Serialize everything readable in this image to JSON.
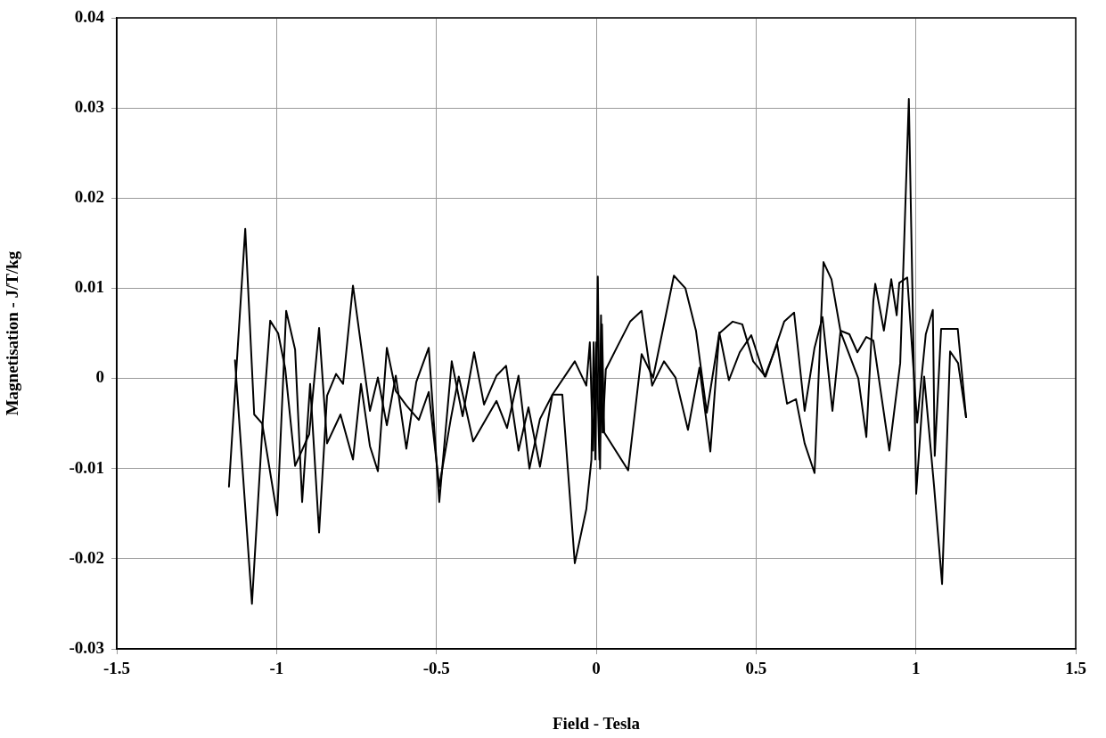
{
  "chart_data": {
    "type": "line",
    "xlabel": "Field - Tesla",
    "ylabel": "Magnetisation - J/T/kg",
    "xlim": [
      -1.5,
      1.5
    ],
    "xticks": [
      -1.5,
      -1,
      -0.5,
      0,
      0.5,
      1,
      1.5
    ],
    "ylim": [
      -0.03,
      0.04
    ],
    "yticks": [
      -0.03,
      -0.02,
      -0.01,
      0,
      0.01,
      0.02,
      0.03,
      0.04
    ],
    "grid": true,
    "legend": false,
    "marker": "none",
    "line_style": "solid",
    "series": [
      {
        "color": "#000000",
        "x": [
          -1.149,
          -1.098,
          -1.07,
          -1.045,
          -0.998,
          -0.97,
          -0.942,
          -0.92,
          -0.895,
          -0.867,
          -0.842,
          -0.814,
          -0.792,
          -0.761,
          -0.708,
          -0.683,
          -0.655,
          -0.627,
          -0.594,
          -0.563,
          -0.524,
          -0.491,
          -0.452,
          -0.418,
          -0.382,
          -0.351,
          -0.312,
          -0.282,
          -0.243,
          -0.212,
          -0.176,
          -0.137,
          -0.067,
          -0.031,
          -0.02,
          -0.01,
          0,
          0.01,
          0.015,
          0.02,
          0.03,
          0.067,
          0.106,
          0.142,
          0.175,
          0.212,
          0.248,
          0.287,
          0.323,
          0.357,
          0.385,
          0.415,
          0.449,
          0.485,
          0.527,
          0.566,
          0.597,
          0.625,
          0.652,
          0.683,
          0.711,
          0.736,
          0.764,
          0.792,
          0.817,
          0.845,
          0.867,
          0.917,
          0.951,
          0.978,
          1.001,
          1.026,
          1.057,
          1.082,
          1.107,
          1.132,
          1.157
        ],
        "values": [
          -0.012,
          0.0166,
          -0.004,
          -0.005,
          -0.0152,
          0.0075,
          0.0032,
          -0.0137,
          -0.0006,
          -0.0171,
          -0.0019,
          0.0005,
          -0.0006,
          0.0103,
          -0.0036,
          0.0001,
          -0.0052,
          0.0003,
          -0.0078,
          -0.0004,
          0.0034,
          -0.0137,
          0.0019,
          -0.0042,
          0.0029,
          -0.0029,
          0.0003,
          0.0014,
          -0.008,
          -0.0032,
          -0.0098,
          -0.0018,
          0.0019,
          -0.0008,
          0.004,
          -0.008,
          0.004,
          -0.009,
          0.007,
          -0.006,
          0.001,
          0.0036,
          0.0063,
          0.0075,
          -0.0008,
          0.0019,
          0.0001,
          -0.0057,
          0.0012,
          -0.0081,
          0.0051,
          -0.0002,
          0.0029,
          0.0048,
          0.0002,
          0.0038,
          -0.0028,
          -0.0023,
          -0.0072,
          -0.0105,
          0.0129,
          0.011,
          0.0053,
          0.0049,
          0.0029,
          0.0046,
          0.0042,
          -0.008,
          0.0017,
          0.031,
          -0.0128,
          0.0002,
          -0.012,
          -0.0228,
          0.003,
          0.0017,
          -0.0043
        ]
      },
      {
        "color": "#000000",
        "x": [
          -1.13,
          -1.077,
          -1.043,
          -1.02,
          -0.995,
          -0.973,
          -0.942,
          -0.898,
          -0.867,
          -0.842,
          -0.8,
          -0.761,
          -0.736,
          -0.708,
          -0.683,
          -0.655,
          -0.627,
          -0.594,
          -0.555,
          -0.524,
          -0.491,
          -0.455,
          -0.43,
          -0.385,
          -0.312,
          -0.279,
          -0.243,
          -0.209,
          -0.176,
          -0.137,
          -0.106,
          -0.067,
          -0.031,
          -0.015,
          -0.008,
          -0.003,
          0.005,
          0.012,
          0.018,
          0.025,
          0.1,
          0.142,
          0.178,
          0.243,
          0.279,
          0.312,
          0.346,
          0.385,
          0.427,
          0.457,
          0.491,
          0.53,
          0.588,
          0.619,
          0.652,
          0.683,
          0.708,
          0.739,
          0.764,
          0.82,
          0.845,
          0.867,
          0.873,
          0.9,
          0.923,
          0.94,
          0.948,
          0.973,
          1.004,
          1.031,
          1.053,
          1.059,
          1.079,
          1.131,
          1.157
        ],
        "values": [
          0.002,
          -0.025,
          -0.0047,
          0.0064,
          0.005,
          0.0011,
          -0.0097,
          -0.0062,
          0.0056,
          -0.0072,
          -0.004,
          -0.009,
          -0.0006,
          -0.0075,
          -0.0103,
          0.0034,
          -0.0014,
          -0.003,
          -0.0046,
          -0.0015,
          -0.012,
          -0.0045,
          0.0002,
          -0.007,
          -0.0025,
          -0.0055,
          0.0003,
          -0.01,
          -0.0045,
          -0.0018,
          -0.0018,
          -0.0205,
          -0.0145,
          -0.009,
          0.004,
          -0.009,
          0.0113,
          -0.01,
          0.006,
          -0.006,
          -0.0102,
          0.0027,
          0.0001,
          0.0114,
          0.01,
          0.0053,
          -0.0038,
          0.005,
          0.0063,
          0.006,
          0.0019,
          0.0002,
          0.0063,
          0.0073,
          -0.0036,
          0.0034,
          0.0068,
          -0.0036,
          0.0052,
          0,
          -0.0065,
          0.0086,
          0.0105,
          0.0053,
          0.011,
          0.007,
          0.0106,
          0.0112,
          -0.0049,
          0.0049,
          0.0076,
          -0.0086,
          0.0055,
          0.0055,
          -0.0043
        ]
      }
    ]
  }
}
